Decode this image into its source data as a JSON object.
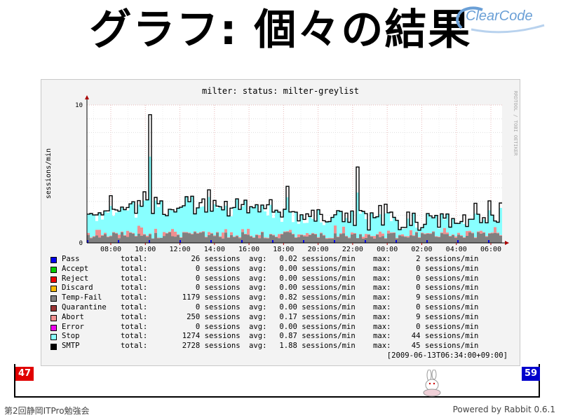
{
  "slide": {
    "title": "グラフ: 個々の結果",
    "logo_text": "ClearCode",
    "footer_left": "第2回静岡ITPro勉強会",
    "footer_right": "Powered by Rabbit 0.6.1",
    "page_current": "47",
    "page_total": "59"
  },
  "chart_data": {
    "type": "area",
    "title": "milter: status: milter-greylist",
    "ylabel": "sessions/min",
    "side_label": "RRDTOOL / TOBI OETIKER",
    "ylim": [
      0,
      10
    ],
    "y_ticks": [
      "0",
      "10"
    ],
    "x_ticks": [
      "08:00",
      "10:00",
      "12:00",
      "14:00",
      "16:00",
      "18:00",
      "20:00",
      "22:00",
      "00:00",
      "02:00",
      "04:00",
      "06:00"
    ],
    "series_peaks": {
      "SMTP": [
        [
          10.3,
          9.3
        ],
        [
          22.2,
          5.5
        ],
        [
          18.2,
          4.1
        ]
      ],
      "Temp-Fail": [
        [
          8.0,
          1.6
        ]
      ]
    },
    "legend": [
      {
        "name": "Pass",
        "color": "#0000ee",
        "total": "26",
        "avg": "0.02",
        "max": "2"
      },
      {
        "name": "Accept",
        "color": "#00cc00",
        "total": "0",
        "avg": "0.00",
        "max": "0"
      },
      {
        "name": "Reject",
        "color": "#ee0000",
        "total": "0",
        "avg": "0.00",
        "max": "0"
      },
      {
        "name": "Discard",
        "color": "#f5b800",
        "total": "0",
        "avg": "0.00",
        "max": "0"
      },
      {
        "name": "Temp-Fail",
        "color": "#808080",
        "total": "1179",
        "avg": "0.82",
        "max": "9"
      },
      {
        "name": "Quarantine",
        "color": "#993333",
        "total": "0",
        "avg": "0.00",
        "max": "0"
      },
      {
        "name": "Abort",
        "color": "#f09090",
        "total": "250",
        "avg": "0.17",
        "max": "9"
      },
      {
        "name": "Error",
        "color": "#ee00ee",
        "total": "0",
        "avg": "0.00",
        "max": "0"
      },
      {
        "name": "Stop",
        "color": "#88ffff",
        "total": "1274",
        "avg": "0.87",
        "max": "44"
      },
      {
        "name": "SMTP",
        "color": "#000000",
        "total": "2728",
        "avg": "1.88",
        "max": "45"
      }
    ],
    "legend_words": {
      "total": "total:",
      "sessions": "sessions",
      "avg": "avg:",
      "rate_unit": "sessions/min",
      "max": "max:"
    },
    "timestamp": "[2009-06-13T06:34:00+09:00]"
  }
}
